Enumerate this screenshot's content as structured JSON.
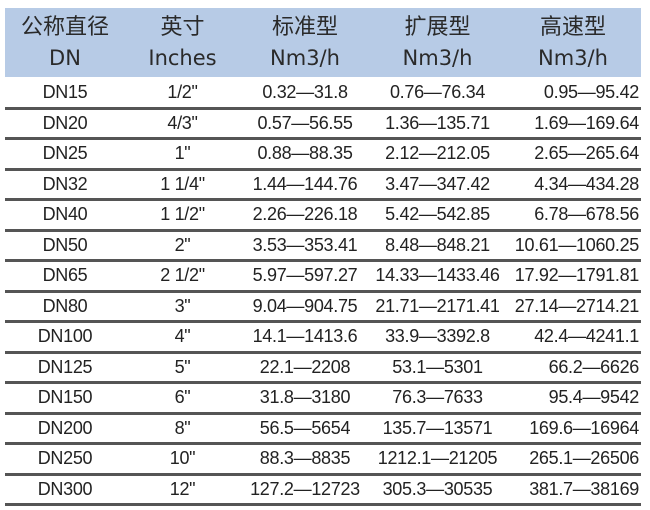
{
  "header": {
    "columns": [
      {
        "title": "公称直径",
        "unit": "DN"
      },
      {
        "title": "英寸",
        "unit": "Inches"
      },
      {
        "title": "标准型",
        "unit": "Nm3/h"
      },
      {
        "title": "扩展型",
        "unit": "Nm3/h"
      },
      {
        "title": "高速型",
        "unit": "Nm3/h"
      }
    ]
  },
  "rows": [
    [
      "DN15",
      "1/2\"",
      "0.32—31.8",
      "0.76—76.34",
      "0.95—95.42"
    ],
    [
      "DN20",
      "4/3\"",
      "0.57—56.55",
      "1.36—135.71",
      "1.69—169.64"
    ],
    [
      "DN25",
      "1\"",
      "0.88—88.35",
      "2.12—212.05",
      "2.65—265.64"
    ],
    [
      "DN32",
      "1 1/4\"",
      "1.44—144.76",
      "3.47—347.42",
      "4.34—434.28"
    ],
    [
      "DN40",
      "1 1/2\"",
      "2.26—226.18",
      "5.42—542.85",
      "6.78—678.56"
    ],
    [
      "DN50",
      "2\"",
      "3.53—353.41",
      "8.48—848.21",
      "10.61—1060.25"
    ],
    [
      "DN65",
      "2 1/2\"",
      "5.97—597.27",
      "14.33—1433.46",
      "17.92—1791.81"
    ],
    [
      "DN80",
      "3\"",
      "9.04—904.75",
      "21.71—2171.41",
      "27.14—2714.21"
    ],
    [
      "DN100",
      "4\"",
      "14.1—1413.6",
      "33.9—3392.8",
      "42.4—4241.1"
    ],
    [
      "DN125",
      "5\"",
      "22.1—2208",
      "53.1—5301",
      "66.2—6626"
    ],
    [
      "DN150",
      "6\"",
      "31.8—3180",
      "76.3—7633",
      "95.4—9542"
    ],
    [
      "DN200",
      "8\"",
      "56.5—5654",
      "135.7—13571",
      "169.6—16964"
    ],
    [
      "DN250",
      "10\"",
      "88.3—8835",
      "1212.1—21205",
      "265.1—26506"
    ],
    [
      "DN300",
      "12\"",
      "127.2—12723",
      "305.3—30535",
      "381.7—38169"
    ]
  ],
  "colors": {
    "header_bg": "#b7cbe6",
    "divider": "#555555"
  }
}
